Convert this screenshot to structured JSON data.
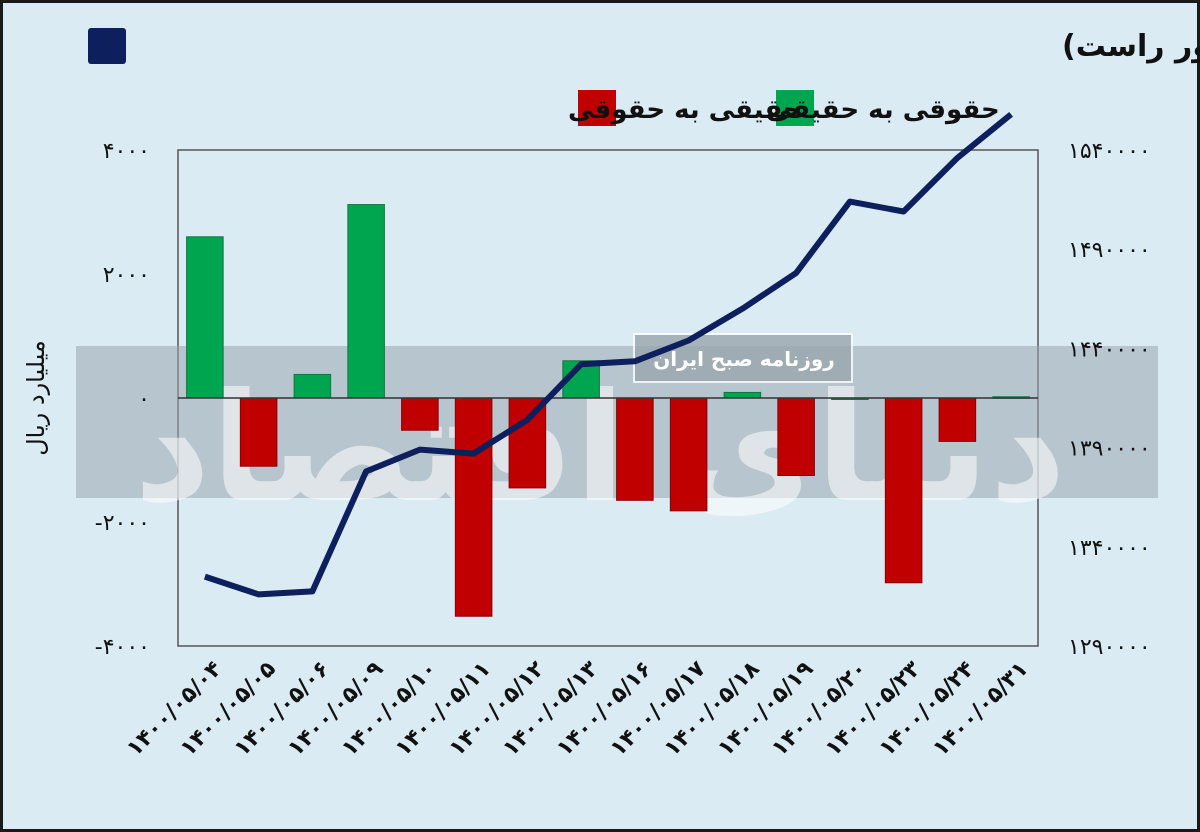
{
  "chart_data": {
    "type": "bar+line",
    "title": "تغییر مالکیت میان سهامداران (محور چپ) و شاخص کل (محور راست)",
    "legend": [
      {
        "label": "حقوقی به حقیقی",
        "color": "#00a64f"
      },
      {
        "label": "حقیقی به حقوقی",
        "color": "#c00000"
      }
    ],
    "line_color": "#0d1f5c",
    "ylabel": "میلیارد ریال",
    "categories": [
      "۱۴۰۰/۰۵/۰۴",
      "۱۴۰۰/۰۵/۰۵",
      "۱۴۰۰/۰۵/۰۶",
      "۱۴۰۰/۰۵/۰۹",
      "۱۴۰۰/۰۵/۱۰",
      "۱۴۰۰/۰۵/۱۱",
      "۱۴۰۰/۰۵/۱۲",
      "۱۴۰۰/۰۵/۱۳",
      "۱۴۰۰/۰۵/۱۶",
      "۱۴۰۰/۰۵/۱۷",
      "۱۴۰۰/۰۵/۱۸",
      "۱۴۰۰/۰۵/۱۹",
      "۱۴۰۰/۰۵/۲۰",
      "۱۴۰۰/۰۵/۲۳",
      "۱۴۰۰/۰۵/۲۴",
      "۱۴۰۰/۰۵/۳۱"
    ],
    "bars": [
      2600,
      -1100,
      380,
      3120,
      -520,
      -3520,
      -1450,
      600,
      -1650,
      -1820,
      90,
      -1250,
      0,
      -2980,
      -700,
      20
    ],
    "line": [
      1325000,
      1316000,
      1317500,
      1378000,
      1389000,
      1387000,
      1404000,
      1432000,
      1433500,
      1444000,
      1460000,
      1478000,
      1514000,
      1509000,
      1536000,
      1558000
    ],
    "left_axis": {
      "min": -4000,
      "max": 4000,
      "ticks": [
        4000,
        2000,
        0,
        -2000,
        -4000
      ],
      "tick_labels": [
        "۴۰۰۰",
        "۲۰۰۰",
        "۰",
        "-۲۰۰۰",
        "-۴۰۰۰"
      ]
    },
    "right_axis": {
      "min": 1290000,
      "max": 1540000,
      "ticks": [
        1540000,
        1490000,
        1440000,
        1390000,
        1340000,
        1290000
      ],
      "tick_labels": [
        "۱۵۴۰۰۰۰",
        "۱۴۹۰۰۰۰",
        "۱۴۴۰۰۰۰",
        "۱۳۹۰۰۰۰",
        "۱۳۴۰۰۰۰",
        "۱۲۹۰۰۰۰"
      ]
    },
    "watermark": {
      "text": "دنیای اقتصاد",
      "badge": "روزنامه صبح ایران"
    }
  }
}
